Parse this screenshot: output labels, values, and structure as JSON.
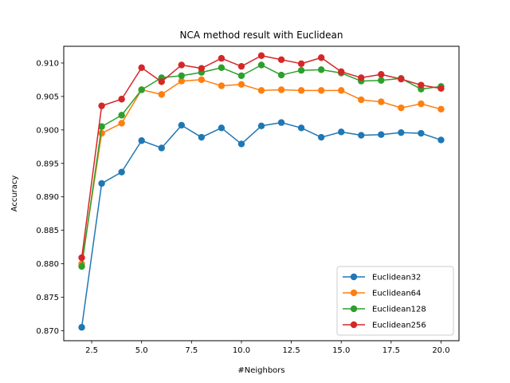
{
  "chart_data": {
    "type": "line",
    "title": "NCA method result with Euclidean",
    "xlabel": "#Neighbors",
    "ylabel": "Accuracy",
    "xlim": [
      1.1,
      20.9
    ],
    "ylim": [
      0.8685,
      0.9125
    ],
    "xticks": [
      2.5,
      5.0,
      7.5,
      10.0,
      12.5,
      15.0,
      17.5,
      20.0
    ],
    "xtick_labels": [
      "2.5",
      "5.0",
      "7.5",
      "10.0",
      "12.5",
      "15.0",
      "17.5",
      "20.0"
    ],
    "yticks": [
      0.87,
      0.875,
      0.88,
      0.885,
      0.89,
      0.895,
      0.9,
      0.905,
      0.91
    ],
    "ytick_labels": [
      "0.870",
      "0.875",
      "0.880",
      "0.885",
      "0.890",
      "0.895",
      "0.900",
      "0.905",
      "0.910"
    ],
    "grid": false,
    "legend_position": "lower-right",
    "x": [
      2,
      3,
      4,
      5,
      6,
      7,
      8,
      9,
      10,
      11,
      12,
      13,
      14,
      15,
      16,
      17,
      18,
      19,
      20
    ],
    "series": [
      {
        "name": "Euclidean32",
        "color": "#1f77b4",
        "values": [
          0.8705,
          0.892,
          0.8937,
          0.8984,
          0.8973,
          0.9007,
          0.8989,
          0.9003,
          0.8979,
          0.9006,
          0.9011,
          0.9003,
          0.8989,
          0.8997,
          0.8992,
          0.8993,
          0.8996,
          0.8995,
          0.8985
        ]
      },
      {
        "name": "Euclidean64",
        "color": "#ff7f0e",
        "values": [
          0.88,
          0.8995,
          0.901,
          0.906,
          0.9053,
          0.9073,
          0.9075,
          0.9066,
          0.9068,
          0.9059,
          0.906,
          0.9059,
          0.9059,
          0.9059,
          0.9045,
          0.9042,
          0.9033,
          0.9039,
          0.9031
        ]
      },
      {
        "name": "Euclidean128",
        "color": "#2ca02c",
        "values": [
          0.8796,
          0.9005,
          0.9022,
          0.906,
          0.9078,
          0.9081,
          0.9086,
          0.9093,
          0.9081,
          0.9097,
          0.9082,
          0.9089,
          0.909,
          0.9085,
          0.9073,
          0.9074,
          0.9077,
          0.9061,
          0.9065
        ]
      },
      {
        "name": "Euclidean256",
        "color": "#d62728",
        "values": [
          0.8809,
          0.9036,
          0.9046,
          0.9093,
          0.9072,
          0.9097,
          0.9092,
          0.9107,
          0.9095,
          0.9111,
          0.9105,
          0.9099,
          0.9108,
          0.9087,
          0.9078,
          0.9083,
          0.9076,
          0.9067,
          0.9062
        ]
      }
    ]
  }
}
